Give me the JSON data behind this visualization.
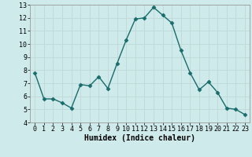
{
  "x": [
    0,
    1,
    2,
    3,
    4,
    5,
    6,
    7,
    8,
    9,
    10,
    11,
    12,
    13,
    14,
    15,
    16,
    17,
    18,
    19,
    20,
    21,
    22,
    23
  ],
  "y": [
    7.8,
    5.8,
    5.8,
    5.5,
    5.1,
    6.9,
    6.8,
    7.5,
    6.6,
    8.5,
    10.3,
    11.9,
    12.0,
    12.8,
    12.2,
    11.6,
    9.5,
    7.8,
    6.5,
    7.1,
    6.3,
    5.1,
    5.0,
    4.6
  ],
  "line_color": "#1a6b6b",
  "marker": "D",
  "marker_size": 2.5,
  "line_width": 1.0,
  "bg_color": "#ceeaea",
  "grid_color": "#c0d8d8",
  "xlabel": "Humidex (Indice chaleur)",
  "xlabel_fontsize": 7,
  "tick_fontsize": 6,
  "ylim": [
    4,
    13
  ],
  "xlim": [
    -0.5,
    23.5
  ],
  "yticks": [
    4,
    5,
    6,
    7,
    8,
    9,
    10,
    11,
    12,
    13
  ],
  "xticks": [
    0,
    1,
    2,
    3,
    4,
    5,
    6,
    7,
    8,
    9,
    10,
    11,
    12,
    13,
    14,
    15,
    16,
    17,
    18,
    19,
    20,
    21,
    22,
    23
  ]
}
